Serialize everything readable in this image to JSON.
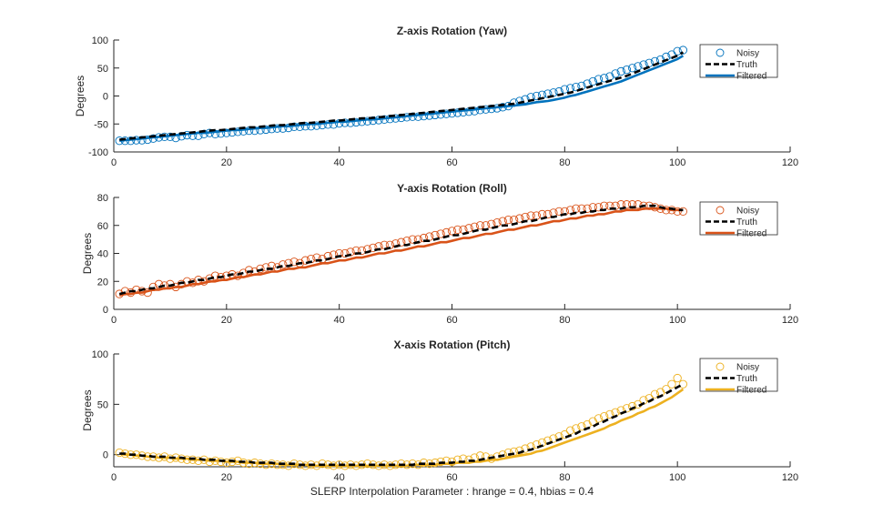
{
  "chart_data": [
    {
      "type": "line",
      "title": "Z-axis Rotation (Yaw)",
      "xlabel": "",
      "ylabel": "Degrees",
      "xlim": [
        0,
        120
      ],
      "ylim": [
        -100,
        100
      ],
      "xticks": [
        "0",
        "20",
        "40",
        "60",
        "80",
        "100",
        "120"
      ],
      "yticks": [
        "-100",
        "-50",
        "0",
        "50",
        "100"
      ],
      "legend_position": "top-right",
      "colors": {
        "noisy": "#0072BD",
        "truth": "#000000",
        "filtered": "#0072BD"
      },
      "series": [
        {
          "name": "Noisy",
          "style": "markers",
          "values": [
            -80,
            -80,
            -80,
            -79,
            -79,
            -78,
            -76,
            -74,
            -73,
            -73,
            -75,
            -72,
            -70,
            -71,
            -71,
            -68,
            -66,
            -68,
            -67,
            -66,
            -65,
            -64,
            -63,
            -62,
            -62,
            -61,
            -60,
            -59,
            -58,
            -58,
            -57,
            -55,
            -55,
            -54,
            -54,
            -53,
            -52,
            -51,
            -51,
            -49,
            -48,
            -48,
            -47,
            -46,
            -45,
            -44,
            -43,
            -42,
            -41,
            -40,
            -39,
            -38,
            -37,
            -37,
            -36,
            -35,
            -34,
            -33,
            -32,
            -31,
            -30,
            -29,
            -28,
            -27,
            -25,
            -24,
            -23,
            -22,
            -20,
            -18,
            -12,
            -9,
            -6,
            -2,
            0,
            2,
            4,
            6,
            8,
            12,
            14,
            16,
            18,
            22,
            26,
            30,
            32,
            35,
            40,
            44,
            47,
            50,
            53,
            56,
            59,
            62,
            65,
            70,
            74,
            80,
            82
          ]
        },
        {
          "name": "Truth",
          "style": "dashed",
          "values": [
            -78,
            -77,
            -76,
            -75,
            -74,
            -73,
            -72,
            -71,
            -70,
            -69,
            -68,
            -67,
            -66,
            -65,
            -64,
            -63,
            -62,
            -61,
            -61,
            -60,
            -59,
            -58,
            -57,
            -56,
            -56,
            -55,
            -54,
            -53,
            -52,
            -52,
            -51,
            -50,
            -49,
            -48,
            -48,
            -47,
            -46,
            -45,
            -44,
            -44,
            -43,
            -42,
            -41,
            -40,
            -40,
            -39,
            -38,
            -37,
            -36,
            -35,
            -34,
            -33,
            -32,
            -31,
            -30,
            -29,
            -28,
            -27,
            -26,
            -25,
            -24,
            -23,
            -22,
            -21,
            -20,
            -19,
            -18,
            -17,
            -16,
            -15,
            -14,
            -12,
            -10,
            -8,
            -6,
            -4,
            -2,
            0,
            2,
            4,
            6,
            9,
            12,
            15,
            18,
            21,
            24,
            27,
            30,
            33,
            36,
            40,
            44,
            48,
            52,
            56,
            60,
            64,
            68,
            72,
            78
          ]
        },
        {
          "name": "Filtered",
          "style": "solid",
          "values": [
            -80,
            -79,
            -78,
            -77,
            -76,
            -75,
            -74,
            -73,
            -72,
            -71,
            -70,
            -69,
            -68,
            -67,
            -66,
            -66,
            -65,
            -64,
            -63,
            -62,
            -61,
            -61,
            -60,
            -59,
            -58,
            -57,
            -57,
            -56,
            -55,
            -54,
            -54,
            -53,
            -52,
            -51,
            -50,
            -50,
            -49,
            -48,
            -47,
            -46,
            -46,
            -45,
            -44,
            -43,
            -42,
            -42,
            -41,
            -40,
            -39,
            -38,
            -37,
            -36,
            -35,
            -34,
            -33,
            -32,
            -31,
            -30,
            -29,
            -28,
            -27,
            -26,
            -25,
            -24,
            -23,
            -22,
            -21,
            -20,
            -19,
            -18,
            -17,
            -16,
            -15,
            -13,
            -11,
            -10,
            -9,
            -7,
            -5,
            -3,
            0,
            2,
            5,
            8,
            11,
            14,
            17,
            20,
            23,
            26,
            30,
            34,
            38,
            42,
            46,
            50,
            54,
            58,
            62,
            66,
            72
          ]
        }
      ]
    },
    {
      "type": "line",
      "title": "Y-axis Rotation (Roll)",
      "xlabel": "",
      "ylabel": "Degrees",
      "xlim": [
        0,
        120
      ],
      "ylim": [
        0,
        80
      ],
      "xticks": [
        "0",
        "20",
        "40",
        "60",
        "80",
        "100",
        "120"
      ],
      "yticks": [
        "0",
        "20",
        "40",
        "60",
        "80"
      ],
      "legend_position": "top-right",
      "colors": {
        "noisy": "#D95319",
        "truth": "#000000",
        "filtered": "#D95319"
      },
      "series": [
        {
          "name": "Noisy",
          "style": "markers",
          "values": [
            11,
            13,
            12,
            14,
            13,
            12,
            16,
            18,
            17,
            18,
            16,
            18,
            20,
            19,
            21,
            20,
            22,
            24,
            23,
            24,
            25,
            24,
            26,
            28,
            27,
            29,
            30,
            31,
            30,
            32,
            33,
            34,
            33,
            35,
            36,
            37,
            36,
            38,
            39,
            40,
            40,
            41,
            42,
            42,
            43,
            44,
            45,
            46,
            46,
            47,
            48,
            49,
            50,
            50,
            51,
            52,
            53,
            54,
            55,
            56,
            57,
            57,
            58,
            59,
            60,
            60,
            61,
            62,
            63,
            64,
            64,
            65,
            66,
            67,
            67,
            68,
            68,
            69,
            70,
            70,
            71,
            72,
            72,
            72,
            73,
            73,
            74,
            74,
            74,
            75,
            75,
            75,
            75,
            74,
            74,
            73,
            72,
            71,
            71,
            70,
            70
          ]
        },
        {
          "name": "Truth",
          "style": "dashed",
          "values": [
            11,
            12,
            13,
            13,
            14,
            15,
            15,
            16,
            17,
            17,
            18,
            19,
            19,
            20,
            21,
            21,
            22,
            23,
            23,
            24,
            25,
            25,
            26,
            27,
            27,
            28,
            29,
            29,
            30,
            31,
            31,
            32,
            33,
            33,
            34,
            35,
            35,
            36,
            37,
            38,
            38,
            39,
            40,
            40,
            41,
            42,
            43,
            43,
            44,
            45,
            46,
            46,
            47,
            48,
            49,
            49,
            50,
            51,
            52,
            53,
            53,
            54,
            55,
            56,
            57,
            57,
            58,
            59,
            60,
            60,
            61,
            62,
            63,
            63,
            64,
            65,
            66,
            66,
            67,
            68,
            68,
            69,
            69,
            70,
            70,
            71,
            71,
            72,
            72,
            72,
            73,
            73,
            73,
            74,
            74,
            74,
            73,
            72,
            72,
            71,
            71
          ]
        },
        {
          "name": "Filtered",
          "style": "solid",
          "values": [
            10,
            11,
            11,
            12,
            12,
            13,
            14,
            14,
            15,
            15,
            16,
            16,
            17,
            18,
            18,
            19,
            20,
            20,
            21,
            21,
            22,
            23,
            23,
            24,
            25,
            25,
            26,
            27,
            27,
            28,
            29,
            29,
            30,
            30,
            31,
            32,
            33,
            33,
            34,
            35,
            35,
            36,
            37,
            37,
            38,
            39,
            40,
            40,
            41,
            42,
            42,
            43,
            44,
            45,
            45,
            46,
            47,
            48,
            48,
            49,
            50,
            51,
            51,
            52,
            53,
            54,
            54,
            55,
            56,
            57,
            57,
            58,
            59,
            60,
            60,
            61,
            62,
            63,
            63,
            64,
            65,
            65,
            66,
            67,
            67,
            68,
            68,
            69,
            70,
            70,
            71,
            71,
            71,
            72,
            72,
            72,
            72,
            72,
            71,
            71,
            71
          ]
        }
      ]
    },
    {
      "type": "line",
      "title": "X-axis Rotation (Pitch)",
      "xlabel": "SLERP Interpolation Parameter : hrange = 0.4, hbias = 0.4",
      "ylabel": "Degrees",
      "xlim": [
        0,
        120
      ],
      "ylim": [
        -12,
        100
      ],
      "xticks": [
        "0",
        "20",
        "40",
        "60",
        "80",
        "100",
        "120"
      ],
      "yticks": [
        "0",
        "50",
        "100"
      ],
      "legend_position": "top-right",
      "colors": {
        "noisy": "#EDB120",
        "truth": "#000000",
        "filtered": "#EDB120"
      },
      "series": [
        {
          "name": "Noisy",
          "style": "markers",
          "values": [
            2,
            1,
            0,
            0,
            -1,
            -2,
            -2,
            -3,
            -2,
            -4,
            -3,
            -4,
            -5,
            -5,
            -6,
            -5,
            -7,
            -6,
            -7,
            -8,
            -7,
            -6,
            -8,
            -9,
            -8,
            -9,
            -10,
            -9,
            -10,
            -10,
            -11,
            -9,
            -10,
            -11,
            -10,
            -11,
            -9,
            -10,
            -11,
            -10,
            -11,
            -10,
            -11,
            -10,
            -9,
            -10,
            -11,
            -10,
            -11,
            -10,
            -9,
            -10,
            -9,
            -10,
            -8,
            -9,
            -8,
            -7,
            -6,
            -7,
            -5,
            -4,
            -5,
            -3,
            -1,
            -2,
            -4,
            -2,
            0,
            2,
            3,
            4,
            6,
            8,
            10,
            12,
            14,
            16,
            18,
            20,
            24,
            26,
            28,
            30,
            33,
            36,
            38,
            40,
            42,
            44,
            46,
            48,
            50,
            54,
            56,
            60,
            62,
            65,
            70,
            76,
            70
          ]
        },
        {
          "name": "Truth",
          "style": "dashed",
          "values": [
            1,
            1,
            0,
            0,
            -1,
            -1,
            -2,
            -2,
            -2,
            -3,
            -3,
            -3,
            -4,
            -4,
            -4,
            -5,
            -5,
            -5,
            -6,
            -6,
            -6,
            -7,
            -7,
            -7,
            -8,
            -8,
            -8,
            -8,
            -9,
            -9,
            -9,
            -9,
            -10,
            -10,
            -10,
            -10,
            -10,
            -10,
            -10,
            -10,
            -10,
            -10,
            -10,
            -10,
            -10,
            -10,
            -10,
            -10,
            -10,
            -10,
            -10,
            -10,
            -10,
            -9,
            -9,
            -9,
            -9,
            -8,
            -8,
            -8,
            -7,
            -7,
            -6,
            -6,
            -5,
            -4,
            -3,
            -2,
            -1,
            0,
            1,
            2,
            4,
            5,
            7,
            9,
            11,
            13,
            15,
            17,
            19,
            21,
            24,
            26,
            28,
            31,
            33,
            36,
            38,
            41,
            43,
            46,
            48,
            51,
            53,
            56,
            58,
            61,
            64,
            67,
            70
          ]
        },
        {
          "name": "Filtered",
          "style": "solid",
          "values": [
            1,
            0,
            0,
            -1,
            -1,
            -2,
            -2,
            -3,
            -3,
            -3,
            -4,
            -4,
            -4,
            -5,
            -5,
            -5,
            -6,
            -6,
            -6,
            -7,
            -7,
            -7,
            -8,
            -8,
            -8,
            -9,
            -9,
            -9,
            -9,
            -10,
            -10,
            -10,
            -10,
            -10,
            -11,
            -11,
            -11,
            -11,
            -11,
            -11,
            -11,
            -11,
            -11,
            -11,
            -11,
            -11,
            -11,
            -11,
            -11,
            -11,
            -11,
            -11,
            -10,
            -10,
            -10,
            -10,
            -10,
            -9,
            -9,
            -9,
            -8,
            -8,
            -8,
            -7,
            -7,
            -6,
            -5,
            -5,
            -4,
            -3,
            -2,
            -1,
            0,
            1,
            3,
            4,
            6,
            8,
            10,
            12,
            14,
            16,
            18,
            20,
            22,
            24,
            26,
            29,
            31,
            34,
            36,
            38,
            41,
            43,
            46,
            48,
            51,
            54,
            57,
            61,
            65
          ]
        }
      ]
    }
  ]
}
